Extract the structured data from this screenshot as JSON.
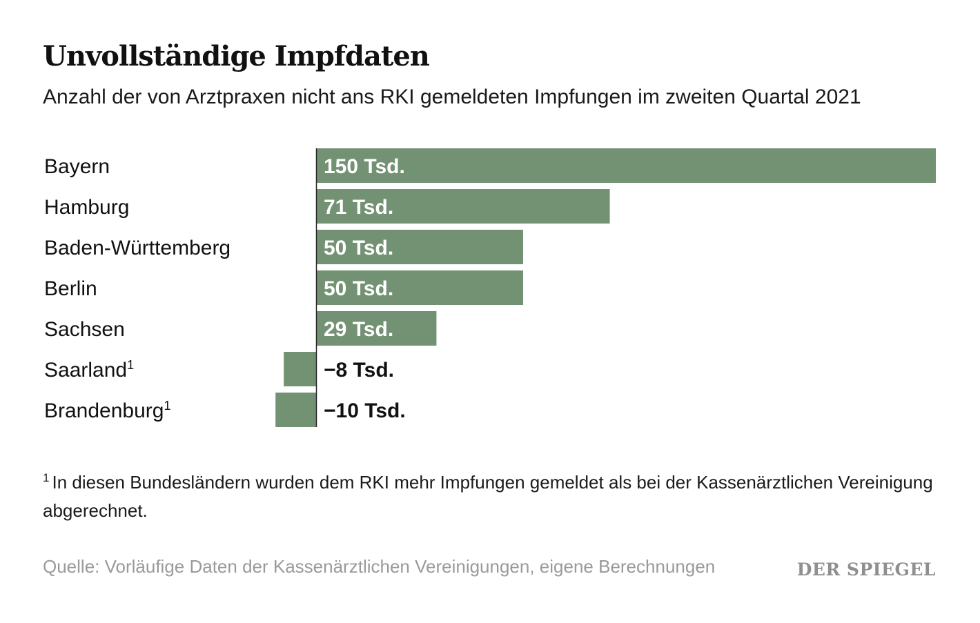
{
  "header": {
    "title": "Unvollständige Impfdaten",
    "subtitle": "Anzahl der von Arztpraxen nicht ans RKI gemeldeten Impfungen im zweiten Quartal 2021"
  },
  "chart_data": {
    "type": "bar",
    "orientation": "horizontal",
    "categories": [
      "Bayern",
      "Hamburg",
      "Baden-Württemberg",
      "Berlin",
      "Sachsen",
      "Saarland",
      "Brandenburg"
    ],
    "category_superscripts": [
      "",
      "",
      "",
      "",
      "",
      "1",
      "1"
    ],
    "values": [
      150,
      71,
      50,
      50,
      29,
      -8,
      -10
    ],
    "value_labels": [
      "150 Tsd.",
      "71 Tsd.",
      "50 Tsd.",
      "50 Tsd.",
      "29 Tsd.",
      "−8 Tsd.",
      "−10 Tsd."
    ],
    "unit": "Tsd.",
    "title": "Unvollständige Impfdaten",
    "xlabel": "",
    "ylabel": "",
    "xlim": [
      -10,
      150
    ],
    "grid": false,
    "legend": "none"
  },
  "colors": {
    "bar": "#739273",
    "label_on_bar": "#ffffff",
    "label_off_bar": "#111111",
    "axis": "#222222",
    "source": "#9a9a9a"
  },
  "footnote": {
    "marker": "1",
    "text": "In diesen Bundesländern wurden dem RKI mehr Impfungen gemeldet als bei der Kassenärztlichen Vereinigung abgerechnet."
  },
  "source": "Quelle: Vorläufige Daten der Kassenärztlichen Vereinigungen, eigene Berechnungen",
  "logo": "DER SPIEGEL"
}
